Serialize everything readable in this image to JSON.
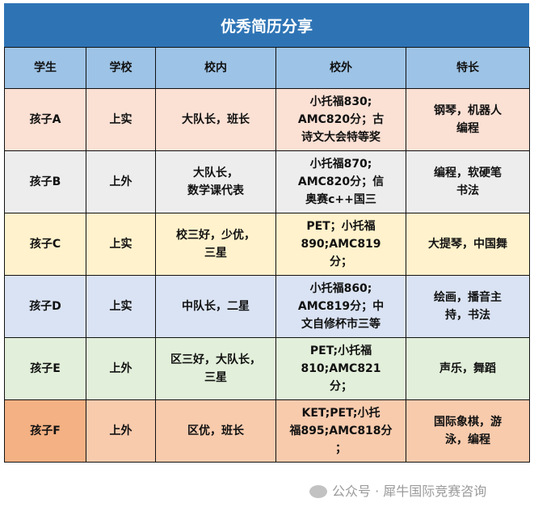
{
  "title": "优秀简历分享",
  "headers": [
    "学生",
    "学校",
    "校内",
    "校外",
    "特长"
  ],
  "rows": [
    {
      "student": "孩子A",
      "school": "上实",
      "inside": "大队长，班长",
      "outside": "小托福830;\nAMC820分；古\n诗文大会特等奖",
      "talent": "钢琴，机器人\n编程"
    },
    {
      "student": "孩子B",
      "school": "上外",
      "inside": "大队长，\n数学课代表",
      "outside": "小托福870;\nAMC820分；信\n奥赛c++国三",
      "talent": "编程，软硬笔\n书法"
    },
    {
      "student": "孩子C",
      "school": "上实",
      "inside": "校三好，少优，\n三星",
      "outside": "PET；小托福\n890;AMC819\n分；",
      "talent": "大提琴，中国舞"
    },
    {
      "student": "孩子D",
      "school": "上实",
      "inside": "中队长，二星",
      "outside": "小托福860;\nAMC819分；中\n文自修杯市三等",
      "talent": "绘画，播音主\n持，书法"
    },
    {
      "student": "孩子E",
      "school": "上外",
      "inside": "区三好，大队长，\n三星",
      "outside": "PET;小托福\n810;AMC821\n分；",
      "talent": "声乐，舞蹈"
    },
    {
      "student": "孩子F",
      "school": "上外",
      "inside": "区优，班长",
      "outside": "KET;PET;小托\n福895;AMC818分\n；",
      "talent": "国际象棋，游\n泳，编程"
    }
  ],
  "watermark": "公众号 · 犀牛国际竞赛咨询"
}
